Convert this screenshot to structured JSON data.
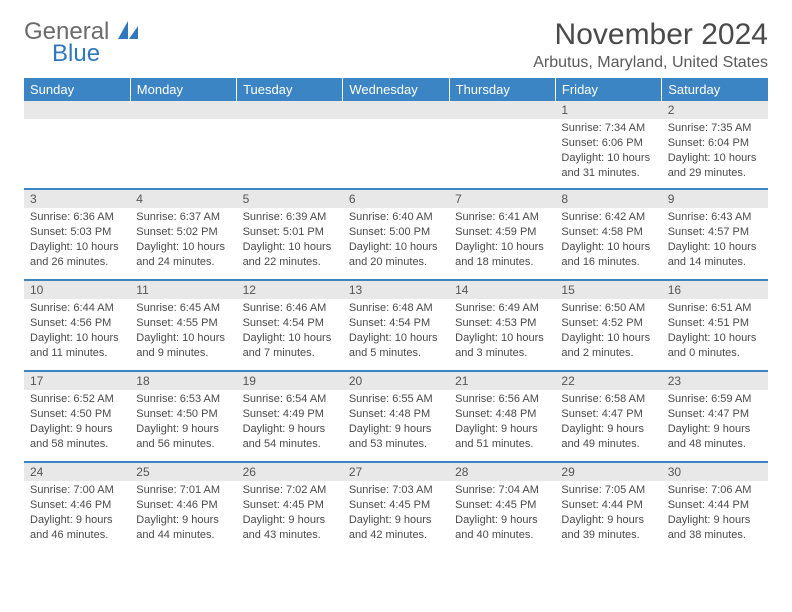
{
  "brand": {
    "part1": "General",
    "part2": "Blue"
  },
  "title": "November 2024",
  "location": "Arbutus, Maryland, United States",
  "colors": {
    "header_bg": "#3b85c5",
    "header_text": "#ffffff",
    "daynum_bg": "#e8e8e8",
    "divider": "#3b85c5",
    "body_text": "#4a4a4a"
  },
  "day_headers": [
    "Sunday",
    "Monday",
    "Tuesday",
    "Wednesday",
    "Thursday",
    "Friday",
    "Saturday"
  ],
  "weeks": [
    {
      "nums": [
        "",
        "",
        "",
        "",
        "",
        "1",
        "2"
      ],
      "cells": [
        {
          "sunrise": "",
          "sunset": "",
          "daylight1": "",
          "daylight2": ""
        },
        {
          "sunrise": "",
          "sunset": "",
          "daylight1": "",
          "daylight2": ""
        },
        {
          "sunrise": "",
          "sunset": "",
          "daylight1": "",
          "daylight2": ""
        },
        {
          "sunrise": "",
          "sunset": "",
          "daylight1": "",
          "daylight2": ""
        },
        {
          "sunrise": "",
          "sunset": "",
          "daylight1": "",
          "daylight2": ""
        },
        {
          "sunrise": "Sunrise: 7:34 AM",
          "sunset": "Sunset: 6:06 PM",
          "daylight1": "Daylight: 10 hours",
          "daylight2": "and 31 minutes."
        },
        {
          "sunrise": "Sunrise: 7:35 AM",
          "sunset": "Sunset: 6:04 PM",
          "daylight1": "Daylight: 10 hours",
          "daylight2": "and 29 minutes."
        }
      ]
    },
    {
      "nums": [
        "3",
        "4",
        "5",
        "6",
        "7",
        "8",
        "9"
      ],
      "cells": [
        {
          "sunrise": "Sunrise: 6:36 AM",
          "sunset": "Sunset: 5:03 PM",
          "daylight1": "Daylight: 10 hours",
          "daylight2": "and 26 minutes."
        },
        {
          "sunrise": "Sunrise: 6:37 AM",
          "sunset": "Sunset: 5:02 PM",
          "daylight1": "Daylight: 10 hours",
          "daylight2": "and 24 minutes."
        },
        {
          "sunrise": "Sunrise: 6:39 AM",
          "sunset": "Sunset: 5:01 PM",
          "daylight1": "Daylight: 10 hours",
          "daylight2": "and 22 minutes."
        },
        {
          "sunrise": "Sunrise: 6:40 AM",
          "sunset": "Sunset: 5:00 PM",
          "daylight1": "Daylight: 10 hours",
          "daylight2": "and 20 minutes."
        },
        {
          "sunrise": "Sunrise: 6:41 AM",
          "sunset": "Sunset: 4:59 PM",
          "daylight1": "Daylight: 10 hours",
          "daylight2": "and 18 minutes."
        },
        {
          "sunrise": "Sunrise: 6:42 AM",
          "sunset": "Sunset: 4:58 PM",
          "daylight1": "Daylight: 10 hours",
          "daylight2": "and 16 minutes."
        },
        {
          "sunrise": "Sunrise: 6:43 AM",
          "sunset": "Sunset: 4:57 PM",
          "daylight1": "Daylight: 10 hours",
          "daylight2": "and 14 minutes."
        }
      ]
    },
    {
      "nums": [
        "10",
        "11",
        "12",
        "13",
        "14",
        "15",
        "16"
      ],
      "cells": [
        {
          "sunrise": "Sunrise: 6:44 AM",
          "sunset": "Sunset: 4:56 PM",
          "daylight1": "Daylight: 10 hours",
          "daylight2": "and 11 minutes."
        },
        {
          "sunrise": "Sunrise: 6:45 AM",
          "sunset": "Sunset: 4:55 PM",
          "daylight1": "Daylight: 10 hours",
          "daylight2": "and 9 minutes."
        },
        {
          "sunrise": "Sunrise: 6:46 AM",
          "sunset": "Sunset: 4:54 PM",
          "daylight1": "Daylight: 10 hours",
          "daylight2": "and 7 minutes."
        },
        {
          "sunrise": "Sunrise: 6:48 AM",
          "sunset": "Sunset: 4:54 PM",
          "daylight1": "Daylight: 10 hours",
          "daylight2": "and 5 minutes."
        },
        {
          "sunrise": "Sunrise: 6:49 AM",
          "sunset": "Sunset: 4:53 PM",
          "daylight1": "Daylight: 10 hours",
          "daylight2": "and 3 minutes."
        },
        {
          "sunrise": "Sunrise: 6:50 AM",
          "sunset": "Sunset: 4:52 PM",
          "daylight1": "Daylight: 10 hours",
          "daylight2": "and 2 minutes."
        },
        {
          "sunrise": "Sunrise: 6:51 AM",
          "sunset": "Sunset: 4:51 PM",
          "daylight1": "Daylight: 10 hours",
          "daylight2": "and 0 minutes."
        }
      ]
    },
    {
      "nums": [
        "17",
        "18",
        "19",
        "20",
        "21",
        "22",
        "23"
      ],
      "cells": [
        {
          "sunrise": "Sunrise: 6:52 AM",
          "sunset": "Sunset: 4:50 PM",
          "daylight1": "Daylight: 9 hours",
          "daylight2": "and 58 minutes."
        },
        {
          "sunrise": "Sunrise: 6:53 AM",
          "sunset": "Sunset: 4:50 PM",
          "daylight1": "Daylight: 9 hours",
          "daylight2": "and 56 minutes."
        },
        {
          "sunrise": "Sunrise: 6:54 AM",
          "sunset": "Sunset: 4:49 PM",
          "daylight1": "Daylight: 9 hours",
          "daylight2": "and 54 minutes."
        },
        {
          "sunrise": "Sunrise: 6:55 AM",
          "sunset": "Sunset: 4:48 PM",
          "daylight1": "Daylight: 9 hours",
          "daylight2": "and 53 minutes."
        },
        {
          "sunrise": "Sunrise: 6:56 AM",
          "sunset": "Sunset: 4:48 PM",
          "daylight1": "Daylight: 9 hours",
          "daylight2": "and 51 minutes."
        },
        {
          "sunrise": "Sunrise: 6:58 AM",
          "sunset": "Sunset: 4:47 PM",
          "daylight1": "Daylight: 9 hours",
          "daylight2": "and 49 minutes."
        },
        {
          "sunrise": "Sunrise: 6:59 AM",
          "sunset": "Sunset: 4:47 PM",
          "daylight1": "Daylight: 9 hours",
          "daylight2": "and 48 minutes."
        }
      ]
    },
    {
      "nums": [
        "24",
        "25",
        "26",
        "27",
        "28",
        "29",
        "30"
      ],
      "cells": [
        {
          "sunrise": "Sunrise: 7:00 AM",
          "sunset": "Sunset: 4:46 PM",
          "daylight1": "Daylight: 9 hours",
          "daylight2": "and 46 minutes."
        },
        {
          "sunrise": "Sunrise: 7:01 AM",
          "sunset": "Sunset: 4:46 PM",
          "daylight1": "Daylight: 9 hours",
          "daylight2": "and 44 minutes."
        },
        {
          "sunrise": "Sunrise: 7:02 AM",
          "sunset": "Sunset: 4:45 PM",
          "daylight1": "Daylight: 9 hours",
          "daylight2": "and 43 minutes."
        },
        {
          "sunrise": "Sunrise: 7:03 AM",
          "sunset": "Sunset: 4:45 PM",
          "daylight1": "Daylight: 9 hours",
          "daylight2": "and 42 minutes."
        },
        {
          "sunrise": "Sunrise: 7:04 AM",
          "sunset": "Sunset: 4:45 PM",
          "daylight1": "Daylight: 9 hours",
          "daylight2": "and 40 minutes."
        },
        {
          "sunrise": "Sunrise: 7:05 AM",
          "sunset": "Sunset: 4:44 PM",
          "daylight1": "Daylight: 9 hours",
          "daylight2": "and 39 minutes."
        },
        {
          "sunrise": "Sunrise: 7:06 AM",
          "sunset": "Sunset: 4:44 PM",
          "daylight1": "Daylight: 9 hours",
          "daylight2": "and 38 minutes."
        }
      ]
    }
  ]
}
